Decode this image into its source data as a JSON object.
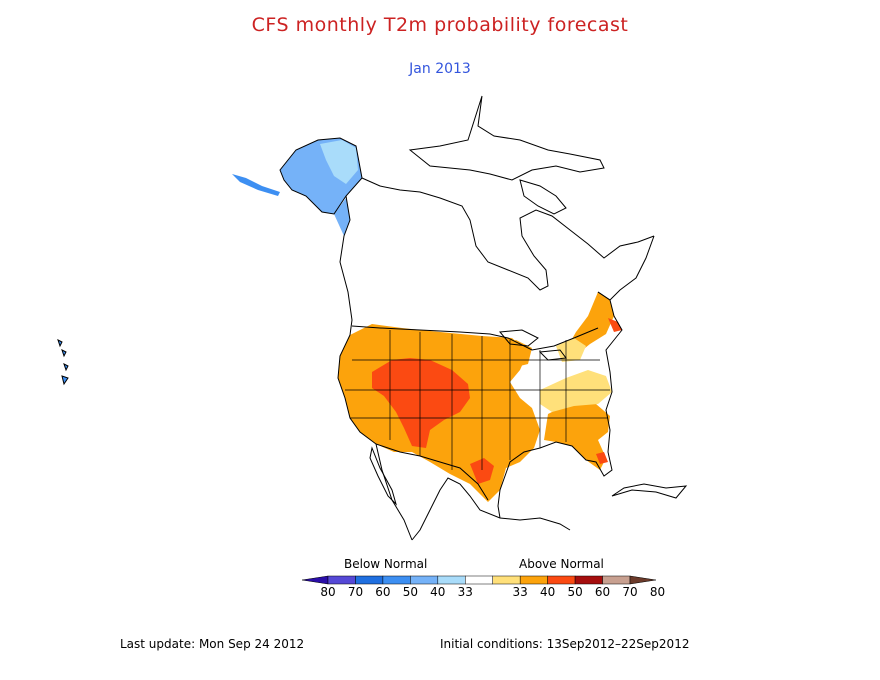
{
  "title": "CFS monthly T2m probability forecast",
  "subtitle": "Jan 2013",
  "legend": {
    "below_label": "Below Normal",
    "above_label": "Above Normal",
    "ticks": [
      "80",
      "70",
      "60",
      "50",
      "40",
      "33",
      "33",
      "40",
      "50",
      "60",
      "70",
      "80"
    ],
    "colors": [
      "#2a0ea8",
      "#5548d6",
      "#1f6fe0",
      "#3d8ff2",
      "#75b2f8",
      "#a9dcfa",
      "#ffffff",
      "#ffe07a",
      "#fca30c",
      "#fb4a12",
      "#a50d0d",
      "#c8a090",
      "#6b3a2a"
    ]
  },
  "footer": {
    "last_update": "Last update: Mon Sep 24 2012",
    "initial_conditions": "Initial conditions: 13Sep2012–22Sep2012"
  },
  "colors": {
    "title": "#cc2222",
    "subtitle": "#3355dd",
    "below_light": "#a9dcfa",
    "below_mid": "#75b2f8",
    "below_dark": "#3d8ff2",
    "above_40": "#ffe07a",
    "above_50": "#fca30c",
    "above_60": "#fb4a12"
  }
}
